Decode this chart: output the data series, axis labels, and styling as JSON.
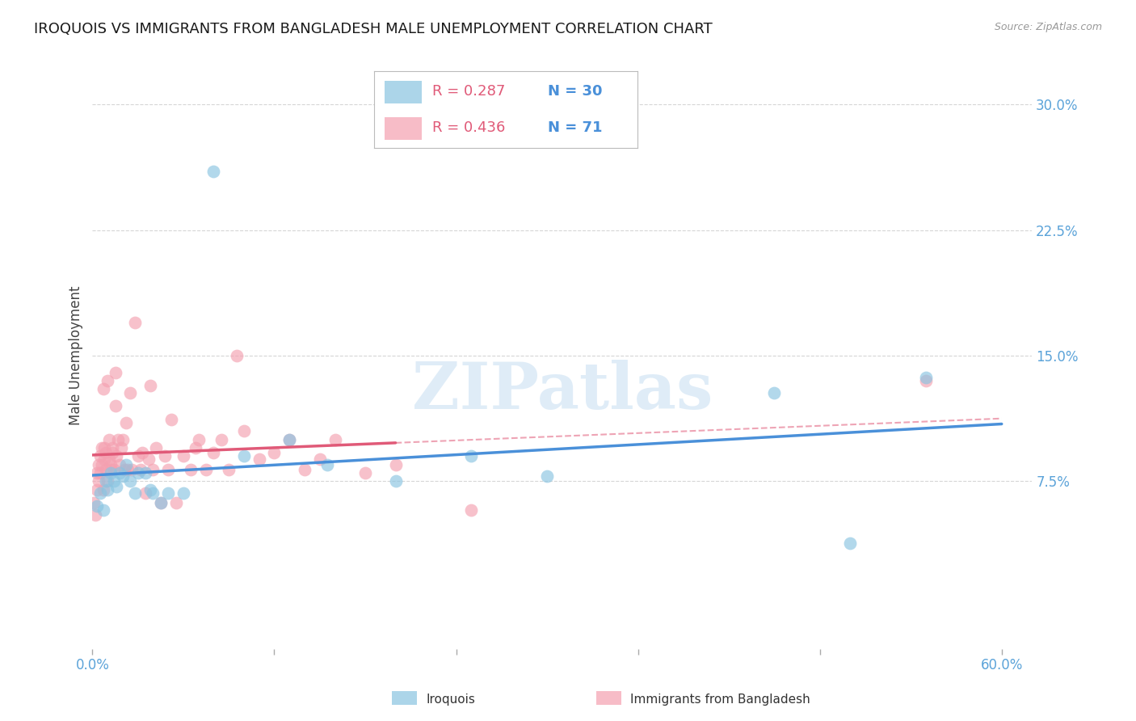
{
  "title": "IROQUOIS VS IMMIGRANTS FROM BANGLADESH MALE UNEMPLOYMENT CORRELATION CHART",
  "source": "Source: ZipAtlas.com",
  "ylabel": "Male Unemployment",
  "iroquois_color": "#89c4e1",
  "bangladesh_color": "#f4a0b0",
  "iroquois_line_color": "#4a90d9",
  "bangladesh_line_color": "#e05a78",
  "tick_color": "#5ba3d9",
  "xlim": [
    0.0,
    0.62
  ],
  "ylim": [
    -0.025,
    0.325
  ],
  "yticks": [
    0.075,
    0.15,
    0.225,
    0.3
  ],
  "ytick_labels": [
    "7.5%",
    "15.0%",
    "22.5%",
    "30.0%"
  ],
  "xticks": [
    0.0,
    0.12,
    0.24,
    0.36,
    0.48,
    0.6
  ],
  "xtick_labels": [
    "0.0%",
    "",
    "",
    "",
    "",
    "60.0%"
  ],
  "legend_r1": "R = 0.287",
  "legend_n1": "N = 30",
  "legend_r2": "R = 0.436",
  "legend_n2": "N = 71",
  "r_color": "#e05a78",
  "n_color": "#4a90d9",
  "watermark": "ZIPatlas",
  "background_color": "#ffffff",
  "grid_color": "#cccccc",
  "iroquois_x": [
    0.003,
    0.005,
    0.007,
    0.009,
    0.01,
    0.012,
    0.014,
    0.016,
    0.018,
    0.02,
    0.022,
    0.025,
    0.028,
    0.03,
    0.035,
    0.038,
    0.04,
    0.045,
    0.05,
    0.06,
    0.08,
    0.1,
    0.13,
    0.155,
    0.2,
    0.25,
    0.3,
    0.45,
    0.5,
    0.55
  ],
  "iroquois_y": [
    0.06,
    0.068,
    0.058,
    0.075,
    0.07,
    0.08,
    0.075,
    0.072,
    0.08,
    0.078,
    0.085,
    0.075,
    0.068,
    0.08,
    0.08,
    0.07,
    0.068,
    0.062,
    0.068,
    0.068,
    0.26,
    0.09,
    0.1,
    0.085,
    0.075,
    0.09,
    0.078,
    0.128,
    0.038,
    0.137
  ],
  "bangladesh_x": [
    0.001,
    0.002,
    0.003,
    0.003,
    0.004,
    0.004,
    0.005,
    0.005,
    0.006,
    0.006,
    0.007,
    0.007,
    0.008,
    0.008,
    0.009,
    0.009,
    0.01,
    0.01,
    0.011,
    0.011,
    0.012,
    0.012,
    0.013,
    0.013,
    0.014,
    0.015,
    0.015,
    0.016,
    0.017,
    0.018,
    0.019,
    0.02,
    0.021,
    0.022,
    0.023,
    0.025,
    0.026,
    0.028,
    0.03,
    0.032,
    0.033,
    0.035,
    0.037,
    0.038,
    0.04,
    0.042,
    0.045,
    0.048,
    0.05,
    0.052,
    0.055,
    0.06,
    0.065,
    0.068,
    0.07,
    0.075,
    0.08,
    0.085,
    0.09,
    0.095,
    0.1,
    0.11,
    0.12,
    0.13,
    0.14,
    0.15,
    0.16,
    0.18,
    0.2,
    0.25,
    0.55
  ],
  "bangladesh_y": [
    0.062,
    0.055,
    0.07,
    0.08,
    0.075,
    0.085,
    0.08,
    0.09,
    0.085,
    0.095,
    0.07,
    0.13,
    0.088,
    0.095,
    0.082,
    0.092,
    0.075,
    0.135,
    0.088,
    0.1,
    0.082,
    0.085,
    0.092,
    0.095,
    0.082,
    0.12,
    0.14,
    0.09,
    0.1,
    0.085,
    0.095,
    0.1,
    0.082,
    0.11,
    0.082,
    0.128,
    0.082,
    0.17,
    0.09,
    0.082,
    0.092,
    0.068,
    0.088,
    0.132,
    0.082,
    0.095,
    0.062,
    0.09,
    0.082,
    0.112,
    0.062,
    0.09,
    0.082,
    0.095,
    0.1,
    0.082,
    0.092,
    0.1,
    0.082,
    0.15,
    0.105,
    0.088,
    0.092,
    0.1,
    0.082,
    0.088,
    0.1,
    0.08,
    0.085,
    0.058,
    0.135
  ]
}
